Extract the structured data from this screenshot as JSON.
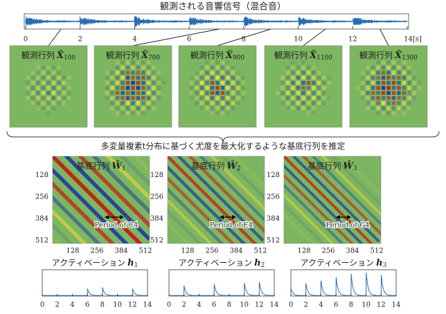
{
  "title": "観測される音響信号（混合音）",
  "waveform_ticks": [
    "0",
    "2",
    "4",
    "6",
    "8",
    "10",
    "12",
    "14[s]"
  ],
  "observations": [
    {
      "label": "観測行列",
      "symbol": "X̂",
      "index": "100"
    },
    {
      "label": "観測行列",
      "symbol": "X̂",
      "index": "700"
    },
    {
      "label": "観測行列",
      "symbol": "X̂",
      "index": "900"
    },
    {
      "label": "観測行列",
      "symbol": "X̂",
      "index": "1100"
    },
    {
      "label": "観測行列",
      "symbol": "X̂",
      "index": "1300"
    }
  ],
  "caption": "多変量複素t分布に基づく尤度を最大化するような基底行列を推定",
  "bases": [
    {
      "label": "基底行列",
      "symbol": "Ŵ",
      "index": "1",
      "note": "Period of C4"
    },
    {
      "label": "基底行列",
      "symbol": "Ŵ",
      "index": "2",
      "note": "Period of E4"
    },
    {
      "label": "基底行列",
      "symbol": "Ŵ",
      "index": "3",
      "note": "Period of G4"
    }
  ],
  "basis_ticks": [
    "128",
    "256",
    "384",
    "512"
  ],
  "activations": [
    {
      "label": "アクティベーション",
      "symbol": "h",
      "index": "1"
    },
    {
      "label": "アクティベーション",
      "symbol": "h",
      "index": "2"
    },
    {
      "label": "アクティベーション",
      "symbol": "h",
      "index": "3"
    }
  ],
  "activation_ticks": [
    "0",
    "2",
    "4",
    "6",
    "8",
    "10",
    "12",
    "14"
  ]
}
